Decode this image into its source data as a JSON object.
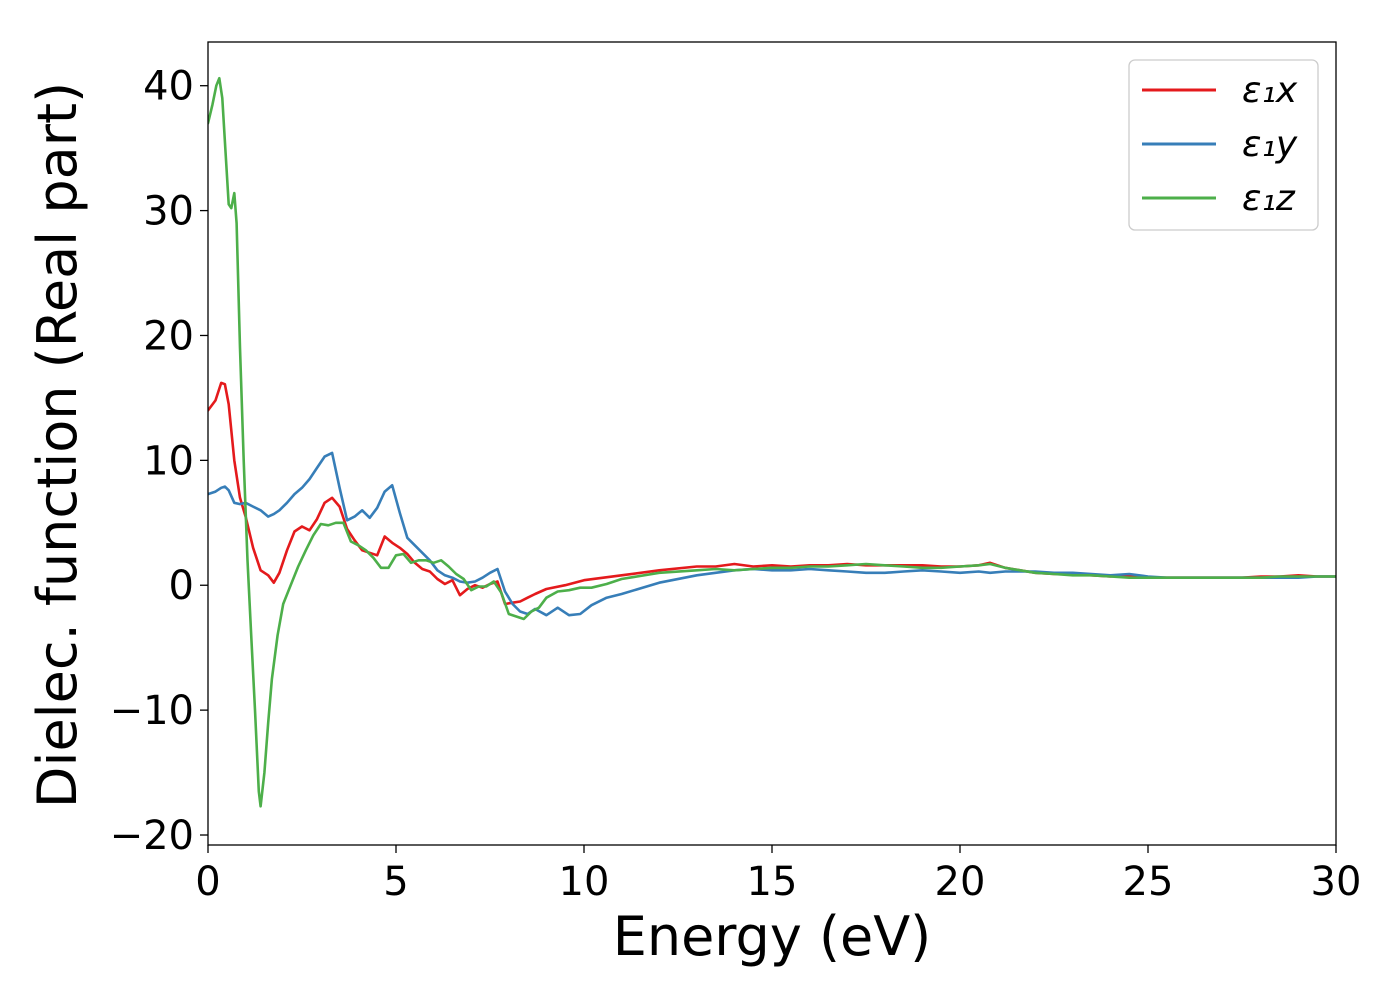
{
  "chart_data": {
    "type": "line",
    "xlabel": "Energy (eV)",
    "ylabel": "Dielec. function (Real part)",
    "xlim": [
      0,
      30
    ],
    "ylim": [
      -20.8,
      43.5
    ],
    "xticks": [
      0,
      5,
      10,
      15,
      20,
      25,
      30
    ],
    "xtick_labels": [
      "0",
      "5",
      "10",
      "15",
      "20",
      "25",
      "30"
    ],
    "yticks": [
      -20,
      -10,
      0,
      10,
      20,
      30,
      40
    ],
    "ytick_labels": [
      "−20",
      "−10",
      "0",
      "10",
      "20",
      "30",
      "40"
    ],
    "grid": false,
    "legend_position": "top-right",
    "series": [
      {
        "name": "ε₁x",
        "color": "#e41a1c",
        "x": [
          0,
          0.2,
          0.35,
          0.45,
          0.55,
          0.7,
          0.85,
          1.0,
          1.2,
          1.4,
          1.6,
          1.75,
          1.9,
          2.1,
          2.3,
          2.5,
          2.7,
          2.9,
          3.1,
          3.3,
          3.5,
          3.7,
          3.9,
          4.1,
          4.3,
          4.5,
          4.7,
          4.9,
          5.1,
          5.3,
          5.5,
          5.7,
          5.9,
          6.1,
          6.3,
          6.5,
          6.7,
          6.9,
          7.1,
          7.3,
          7.5,
          7.7,
          7.9,
          8.1,
          8.3,
          8.5,
          8.7,
          9.0,
          9.5,
          10.0,
          11.0,
          12.0,
          13.0,
          13.5,
          14.0,
          14.5,
          15.0,
          15.5,
          16.0,
          16.5,
          17.0,
          17.5,
          18.0,
          18.5,
          19.0,
          19.5,
          20.0,
          20.5,
          20.8,
          21.2,
          21.6,
          22.0,
          22.5,
          23.0,
          23.5,
          24.0,
          24.5,
          25.0,
          25.5,
          26.0,
          26.5,
          27.0,
          27.5,
          28.0,
          28.5,
          29.0,
          29.5,
          30.0
        ],
        "values": [
          14.0,
          14.8,
          16.2,
          16.1,
          14.5,
          10.0,
          7.0,
          5.5,
          3.0,
          1.2,
          0.8,
          0.2,
          1.0,
          2.8,
          4.3,
          4.7,
          4.4,
          5.3,
          6.6,
          7.0,
          6.3,
          4.5,
          3.6,
          2.8,
          2.6,
          2.4,
          3.9,
          3.4,
          3.0,
          2.5,
          1.8,
          1.3,
          1.1,
          0.5,
          0.1,
          0.4,
          -0.8,
          -0.3,
          0.0,
          -0.2,
          0.1,
          0.3,
          -1.5,
          -1.4,
          -1.3,
          -1.0,
          -0.7,
          -0.3,
          0.0,
          0.4,
          0.8,
          1.2,
          1.5,
          1.5,
          1.7,
          1.5,
          1.6,
          1.5,
          1.6,
          1.6,
          1.7,
          1.6,
          1.6,
          1.6,
          1.6,
          1.5,
          1.5,
          1.6,
          1.8,
          1.4,
          1.2,
          1.0,
          0.9,
          0.9,
          0.8,
          0.7,
          0.8,
          0.6,
          0.6,
          0.6,
          0.6,
          0.6,
          0.6,
          0.7,
          0.7,
          0.8,
          0.7,
          0.7
        ]
      },
      {
        "name": "ε₁y",
        "color": "#377eb8",
        "x": [
          0,
          0.2,
          0.35,
          0.45,
          0.55,
          0.7,
          0.85,
          1.0,
          1.2,
          1.4,
          1.6,
          1.75,
          1.9,
          2.1,
          2.3,
          2.5,
          2.7,
          2.9,
          3.1,
          3.3,
          3.5,
          3.7,
          3.9,
          4.1,
          4.3,
          4.5,
          4.7,
          4.9,
          5.1,
          5.3,
          5.5,
          5.7,
          5.9,
          6.1,
          6.3,
          6.5,
          6.7,
          6.9,
          7.1,
          7.3,
          7.5,
          7.7,
          7.9,
          8.1,
          8.3,
          8.5,
          8.7,
          9.0,
          9.3,
          9.6,
          9.9,
          10.2,
          10.6,
          11.0,
          12.0,
          13.0,
          13.5,
          14.0,
          14.5,
          15.0,
          15.5,
          16.0,
          16.5,
          17.0,
          17.5,
          18.0,
          18.5,
          19.0,
          19.5,
          20.0,
          20.5,
          20.8,
          21.2,
          21.6,
          22.0,
          22.5,
          23.0,
          23.5,
          24.0,
          24.5,
          25.0,
          25.5,
          26.0,
          26.5,
          27.0,
          27.5,
          28.0,
          28.5,
          29.0,
          29.5,
          30.0
        ],
        "values": [
          7.3,
          7.5,
          7.8,
          7.9,
          7.6,
          6.6,
          6.5,
          6.6,
          6.3,
          6.0,
          5.5,
          5.7,
          6.0,
          6.6,
          7.3,
          7.8,
          8.5,
          9.4,
          10.3,
          10.6,
          7.8,
          5.2,
          5.5,
          6.0,
          5.4,
          6.2,
          7.5,
          8.0,
          5.8,
          3.8,
          3.2,
          2.6,
          2.0,
          1.2,
          0.8,
          0.6,
          0.3,
          0.2,
          0.3,
          0.6,
          1.0,
          1.3,
          -0.5,
          -1.5,
          -2.1,
          -2.3,
          -1.9,
          -2.4,
          -1.8,
          -2.4,
          -2.3,
          -1.6,
          -1.0,
          -0.7,
          0.2,
          0.8,
          1.0,
          1.2,
          1.3,
          1.2,
          1.2,
          1.3,
          1.2,
          1.1,
          1.0,
          1.0,
          1.1,
          1.2,
          1.1,
          1.0,
          1.1,
          1.0,
          1.1,
          1.1,
          1.1,
          1.0,
          1.0,
          0.9,
          0.8,
          0.9,
          0.7,
          0.6,
          0.6,
          0.6,
          0.6,
          0.6,
          0.6,
          0.6,
          0.6,
          0.7,
          0.7
        ]
      },
      {
        "name": "ε₁z",
        "color": "#4daf4a",
        "x": [
          0,
          0.12,
          0.22,
          0.3,
          0.38,
          0.46,
          0.55,
          0.62,
          0.7,
          0.76,
          0.85,
          0.95,
          1.05,
          1.15,
          1.25,
          1.35,
          1.4,
          1.5,
          1.6,
          1.7,
          1.85,
          2.0,
          2.2,
          2.4,
          2.6,
          2.8,
          3.0,
          3.2,
          3.4,
          3.6,
          3.8,
          4.0,
          4.2,
          4.4,
          4.6,
          4.8,
          5.0,
          5.2,
          5.4,
          5.6,
          5.8,
          6.0,
          6.2,
          6.4,
          6.6,
          6.8,
          7.0,
          7.2,
          7.4,
          7.6,
          7.8,
          8.0,
          8.2,
          8.4,
          8.6,
          8.8,
          9.0,
          9.3,
          9.6,
          9.9,
          10.2,
          10.6,
          11.0,
          12.0,
          13.0,
          13.5,
          14.0,
          14.5,
          15.0,
          15.5,
          16.0,
          16.5,
          17.0,
          17.5,
          18.0,
          18.5,
          19.0,
          19.5,
          20.0,
          20.5,
          20.8,
          21.2,
          21.6,
          22.0,
          22.5,
          23.0,
          23.5,
          24.0,
          24.5,
          25.0,
          25.5,
          26.0,
          26.5,
          27.0,
          27.5,
          28.0,
          28.5,
          29.0,
          29.5,
          30.0
        ],
        "values": [
          37.0,
          38.5,
          40.0,
          40.6,
          39.0,
          35.0,
          30.5,
          30.2,
          31.4,
          29.0,
          19.0,
          10.0,
          2.0,
          -4.0,
          -10.0,
          -16.5,
          -17.7,
          -15.0,
          -11.0,
          -7.5,
          -4.0,
          -1.5,
          0.0,
          1.5,
          2.8,
          4.0,
          4.9,
          4.8,
          5.0,
          5.0,
          3.5,
          3.2,
          2.8,
          2.2,
          1.4,
          1.4,
          2.4,
          2.5,
          1.8,
          2.0,
          2.0,
          1.8,
          2.0,
          1.5,
          0.9,
          0.5,
          -0.4,
          -0.1,
          -0.1,
          0.3,
          -0.6,
          -2.3,
          -2.5,
          -2.7,
          -2.1,
          -1.8,
          -1.0,
          -0.5,
          -0.4,
          -0.2,
          -0.2,
          0.1,
          0.5,
          1.0,
          1.2,
          1.3,
          1.2,
          1.3,
          1.4,
          1.4,
          1.5,
          1.5,
          1.6,
          1.7,
          1.6,
          1.5,
          1.4,
          1.4,
          1.5,
          1.6,
          1.7,
          1.4,
          1.2,
          1.0,
          0.9,
          0.8,
          0.8,
          0.7,
          0.6,
          0.6,
          0.6,
          0.6,
          0.6,
          0.6,
          0.6,
          0.6,
          0.7,
          0.7,
          0.7,
          0.7
        ]
      }
    ]
  }
}
